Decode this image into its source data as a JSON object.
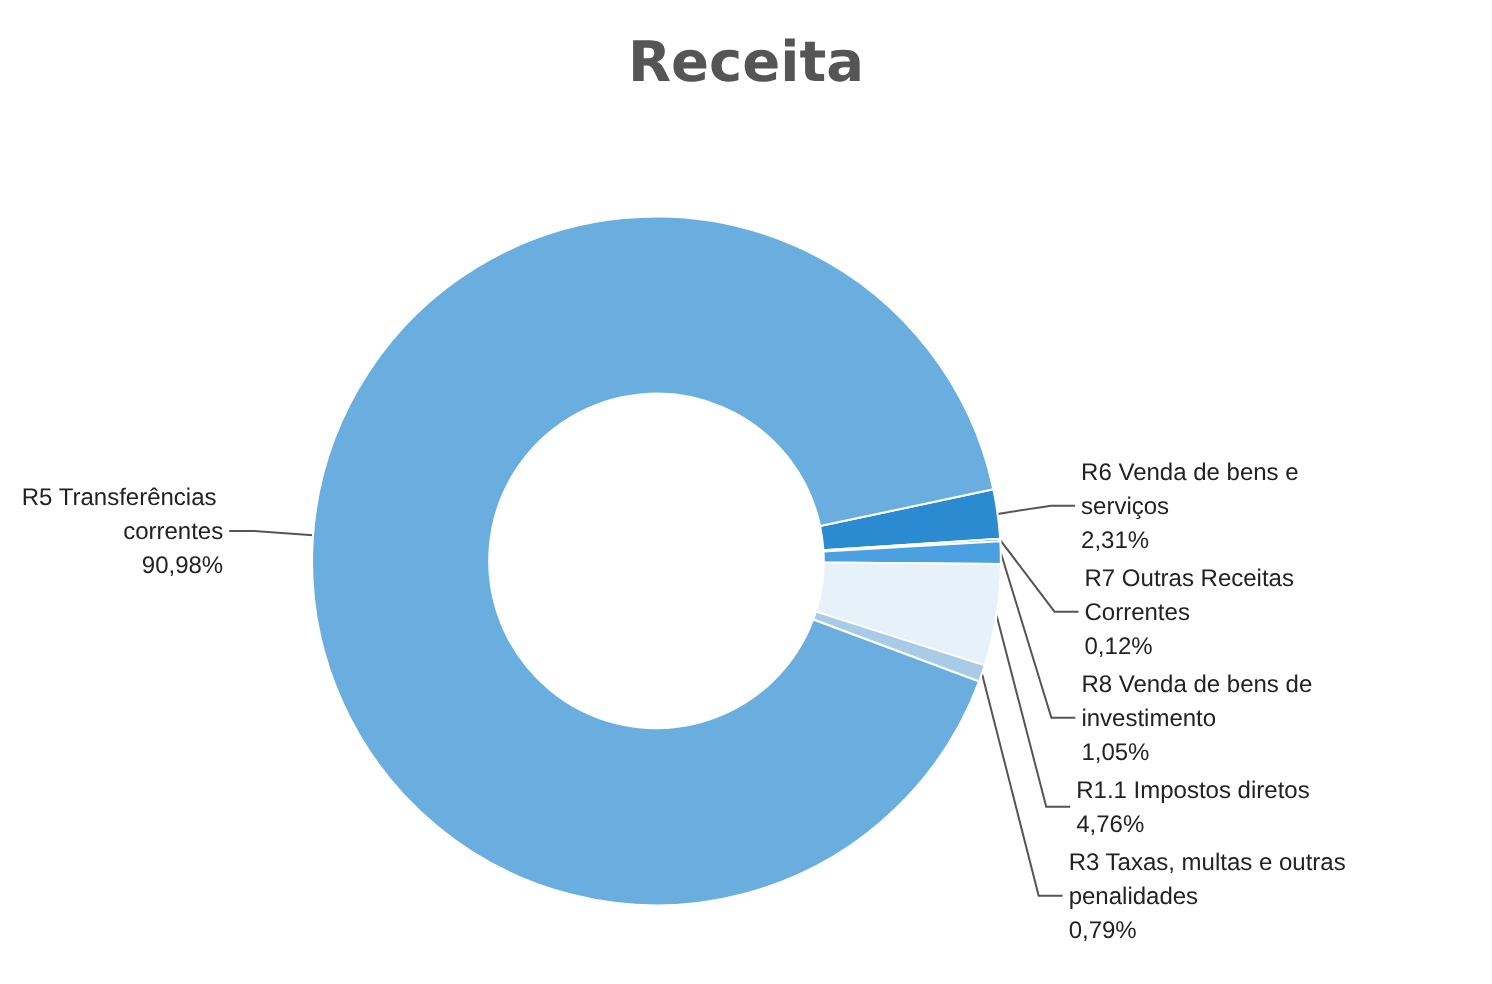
{
  "chart_data": {
    "type": "donut",
    "title": "Receita",
    "categories": [
      "R6 Venda de bens e serviços",
      "R7 Outras Receitas Correntes",
      "R8 Venda de bens de investimento",
      "R1.1 Impostos diretos",
      "R3 Taxas, multas e outras penalidades",
      "R5 Transferências correntes"
    ],
    "values": [
      2.31,
      0.12,
      1.05,
      4.76,
      0.79,
      90.98
    ],
    "value_labels": [
      "2,31%",
      "0,12%",
      "1,05%",
      "4,76%",
      "0,79%",
      "90,98%"
    ],
    "colors": [
      "#2b8ad0",
      "#1f6fb8",
      "#4aa0e0",
      "#e6f1fa",
      "#a8cce8",
      "#6aaee0"
    ],
    "legend": false
  }
}
